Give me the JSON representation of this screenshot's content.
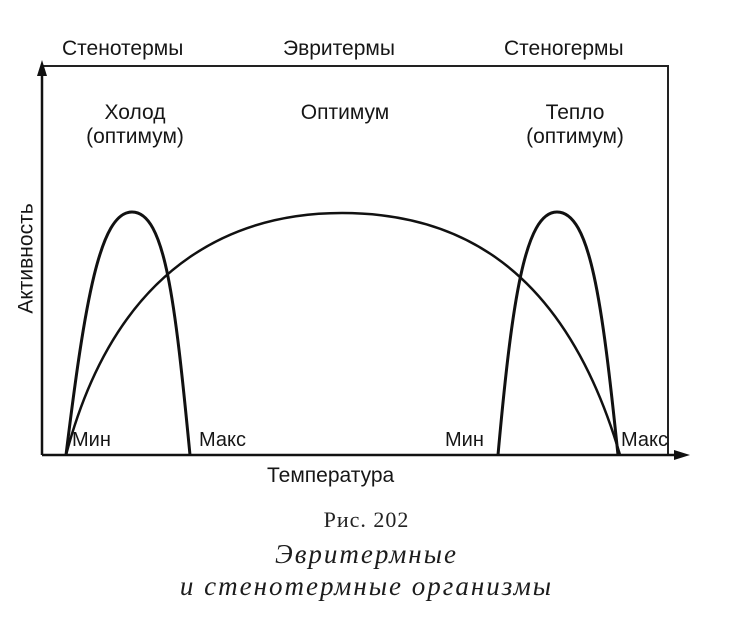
{
  "header": {
    "left": "Стенотермы",
    "center": "Эвритермы",
    "right": "Стеногермы"
  },
  "zones": {
    "cold": [
      "Холод",
      "(оптимум)"
    ],
    "middle": "Оптимум",
    "warm": [
      "Тепло",
      "(оптимум)"
    ]
  },
  "axes": {
    "y": "Активность",
    "x": "Температура"
  },
  "points": {
    "cold_min": "Мин",
    "cold_max": "Макс",
    "warm_min": "Мин",
    "warm_max": "Макс"
  },
  "figure": {
    "number": "Рис. 202",
    "caption_line1": "Эвритермные",
    "caption_line2": "и стенотермные организмы"
  },
  "colors": {
    "ink": "#161616",
    "paper": "#ffffff"
  }
}
